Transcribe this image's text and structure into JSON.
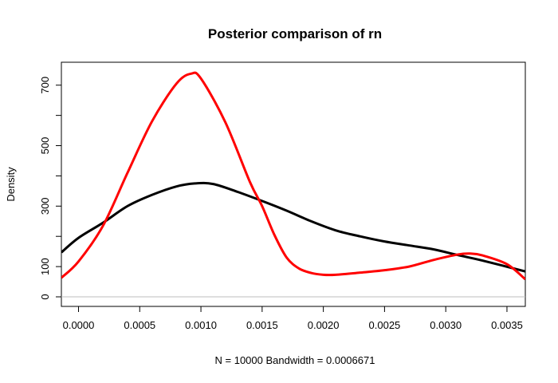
{
  "chart_data": {
    "type": "line",
    "title": "Posterior comparison of rn",
    "xlabel": "N = 10000   Bandwidth = 0.0006671",
    "ylabel": "Density",
    "xlim": [
      -0.00014,
      0.00365
    ],
    "ylim": [
      0,
      760
    ],
    "x_ticks": [
      "0.0000",
      "0.0005",
      "0.0010",
      "0.0015",
      "0.0020",
      "0.0025",
      "0.0030",
      "0.0035"
    ],
    "x_tick_values": [
      0,
      0.0005,
      0.001,
      0.0015,
      0.002,
      0.0025,
      0.003,
      0.0035
    ],
    "y_ticks": [
      "0",
      "100",
      "300",
      "500",
      "700"
    ],
    "y_tick_values": [
      0,
      100,
      300,
      500,
      700
    ],
    "y_minor_ticks": [
      200,
      400,
      600
    ],
    "baseline": 0,
    "grid": false,
    "legend": "none",
    "series": [
      {
        "color": "#000000",
        "values": [
          [
            -0.00014,
            147
          ],
          [
            0.0,
            195
          ],
          [
            0.0002,
            245
          ],
          [
            0.0004,
            300
          ],
          [
            0.0006,
            337
          ],
          [
            0.0008,
            365
          ],
          [
            0.00095,
            375
          ],
          [
            0.0011,
            373
          ],
          [
            0.0013,
            347
          ],
          [
            0.0015,
            317
          ],
          [
            0.0017,
            285
          ],
          [
            0.0019,
            250
          ],
          [
            0.0021,
            220
          ],
          [
            0.0023,
            200
          ],
          [
            0.0025,
            183
          ],
          [
            0.0027,
            170
          ],
          [
            0.0029,
            157
          ],
          [
            0.0031,
            138
          ],
          [
            0.0033,
            120
          ],
          [
            0.00365,
            84
          ]
        ]
      },
      {
        "color": "#ff0000",
        "values": [
          [
            -0.00014,
            63
          ],
          [
            0.0,
            117
          ],
          [
            0.0002,
            235
          ],
          [
            0.0004,
            410
          ],
          [
            0.0006,
            580
          ],
          [
            0.0008,
            705
          ],
          [
            0.00092,
            738
          ],
          [
            0.001,
            722
          ],
          [
            0.0012,
            577
          ],
          [
            0.0014,
            380
          ],
          [
            0.0015,
            300
          ],
          [
            0.0016,
            205
          ],
          [
            0.0017,
            130
          ],
          [
            0.0018,
            94
          ],
          [
            0.0019,
            79
          ],
          [
            0.002,
            73
          ],
          [
            0.0021,
            73
          ],
          [
            0.0023,
            80
          ],
          [
            0.0025,
            88
          ],
          [
            0.0027,
            100
          ],
          [
            0.0029,
            122
          ],
          [
            0.0031,
            140
          ],
          [
            0.0032,
            143
          ],
          [
            0.0033,
            137
          ],
          [
            0.0035,
            108
          ],
          [
            0.00365,
            58
          ]
        ]
      }
    ]
  }
}
